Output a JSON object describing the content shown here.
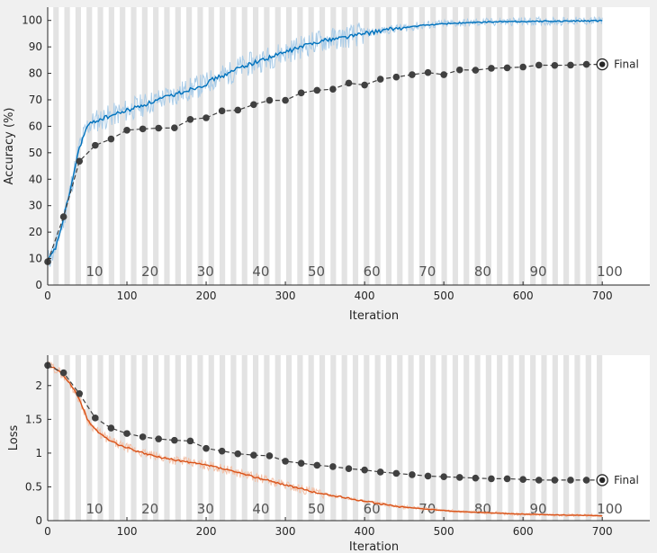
{
  "chart_data": [
    {
      "type": "line",
      "panel": "accuracy",
      "ylabel": "Accuracy (%)",
      "xlabel": "Iteration",
      "xlim": [
        0,
        760
      ],
      "ylim": [
        0,
        105
      ],
      "xticks": [
        0,
        100,
        200,
        300,
        400,
        500,
        600,
        700
      ],
      "yticks": [
        0,
        10,
        20,
        30,
        40,
        50,
        60,
        70,
        80,
        90,
        100
      ],
      "epoch_labels": [
        "10",
        "20",
        "30",
        "40",
        "50",
        "60",
        "70",
        "80",
        "90",
        "100"
      ],
      "epoch_label_iterations": [
        70,
        140,
        210,
        280,
        350,
        420,
        490,
        560,
        630,
        700
      ],
      "epoch_band_iterations": 7,
      "final_label": "Final",
      "colors": {
        "training": "#0072bd",
        "training_raw": "#a9cce8",
        "validation": "#404040"
      },
      "series": [
        {
          "role": "training-smoothed",
          "x": [
            0,
            10,
            20,
            30,
            40,
            50,
            60,
            70,
            80,
            90,
            100,
            110,
            120,
            130,
            140,
            150,
            160,
            170,
            180,
            190,
            200,
            210,
            220,
            230,
            240,
            250,
            260,
            270,
            280,
            290,
            300,
            310,
            320,
            330,
            340,
            350,
            360,
            370,
            380,
            390,
            400,
            410,
            420,
            430,
            440,
            450,
            460,
            470,
            480,
            490,
            500,
            510,
            520,
            530,
            540,
            550,
            560,
            570,
            580,
            590,
            600,
            610,
            620,
            630,
            640,
            650,
            660,
            670,
            680,
            690,
            700
          ],
          "values": [
            9,
            14,
            25,
            38,
            52,
            60,
            62,
            63,
            64,
            65,
            66,
            67,
            68,
            69,
            70,
            71,
            72,
            73,
            74,
            75,
            76,
            78,
            79,
            80,
            82,
            83,
            84,
            85,
            86,
            87,
            88,
            89,
            90,
            91,
            92,
            92.5,
            93,
            93.5,
            94,
            94.5,
            95,
            95.5,
            96,
            96.5,
            97,
            97.3,
            97.6,
            98,
            98.3,
            98.5,
            98.7,
            98.9,
            99,
            99.1,
            99.2,
            99.3,
            99.4,
            99.5,
            99.5,
            99.6,
            99.6,
            99.6,
            99.7,
            99.7,
            99.7,
            99.7,
            99.8,
            99.8,
            99.8,
            99.8,
            99.8
          ]
        },
        {
          "role": "validation",
          "x": [
            0,
            20,
            40,
            60,
            80,
            100,
            120,
            140,
            160,
            180,
            200,
            220,
            240,
            260,
            280,
            300,
            320,
            340,
            360,
            380,
            400,
            420,
            440,
            460,
            480,
            500,
            520,
            540,
            560,
            580,
            600,
            620,
            640,
            660,
            680,
            700
          ],
          "values": [
            8.8,
            25.8,
            46.8,
            52.8,
            55.2,
            58.5,
            59,
            59.3,
            59.4,
            62.6,
            63.2,
            65.8,
            66.1,
            68.2,
            69.8,
            69.8,
            72.6,
            73.6,
            74,
            76.3,
            75.6,
            77.8,
            78.6,
            79.5,
            80.3,
            79.5,
            81.3,
            81.2,
            81.9,
            82.1,
            82.4,
            83.1,
            83,
            83.1,
            83.4,
            83.4
          ]
        }
      ]
    },
    {
      "type": "line",
      "panel": "loss",
      "ylabel": "Loss",
      "xlabel": "Iteration",
      "xlim": [
        0,
        760
      ],
      "ylim": [
        0,
        2.45
      ],
      "xticks": [
        0,
        100,
        200,
        300,
        400,
        500,
        600,
        700
      ],
      "yticks": [
        0,
        0.5,
        1,
        1.5,
        2
      ],
      "ytick_labels": [
        "0",
        "0.5",
        "1",
        "1.5",
        "2"
      ],
      "epoch_labels": [
        "10",
        "20",
        "30",
        "40",
        "50",
        "60",
        "70",
        "80",
        "90",
        "100"
      ],
      "epoch_label_iterations": [
        70,
        140,
        210,
        280,
        350,
        420,
        490,
        560,
        630,
        700
      ],
      "epoch_band_iterations": 7,
      "final_label": "Final",
      "colors": {
        "training": "#d95319",
        "training_raw": "#f3c1a8",
        "validation": "#404040"
      },
      "series": [
        {
          "role": "training-smoothed",
          "x": [
            0,
            10,
            20,
            30,
            40,
            50,
            60,
            70,
            80,
            90,
            100,
            110,
            120,
            130,
            140,
            150,
            160,
            170,
            180,
            190,
            200,
            210,
            220,
            230,
            240,
            250,
            260,
            270,
            280,
            290,
            300,
            310,
            320,
            330,
            340,
            350,
            360,
            370,
            380,
            390,
            400,
            410,
            420,
            430,
            440,
            450,
            460,
            470,
            480,
            490,
            500,
            510,
            520,
            530,
            540,
            550,
            560,
            570,
            580,
            590,
            600,
            610,
            620,
            630,
            640,
            650,
            660,
            670,
            680,
            690,
            700
          ],
          "values": [
            2.3,
            2.25,
            2.15,
            2.0,
            1.8,
            1.5,
            1.35,
            1.25,
            1.18,
            1.12,
            1.08,
            1.04,
            1.0,
            0.97,
            0.94,
            0.92,
            0.9,
            0.88,
            0.86,
            0.84,
            0.82,
            0.8,
            0.77,
            0.74,
            0.71,
            0.68,
            0.65,
            0.62,
            0.59,
            0.56,
            0.53,
            0.5,
            0.47,
            0.44,
            0.41,
            0.39,
            0.37,
            0.35,
            0.33,
            0.31,
            0.29,
            0.27,
            0.25,
            0.23,
            0.21,
            0.2,
            0.19,
            0.18,
            0.17,
            0.16,
            0.15,
            0.14,
            0.135,
            0.13,
            0.125,
            0.12,
            0.115,
            0.11,
            0.105,
            0.1,
            0.097,
            0.094,
            0.091,
            0.088,
            0.085,
            0.083,
            0.081,
            0.079,
            0.077,
            0.075,
            0.073
          ]
        },
        {
          "role": "validation",
          "x": [
            0,
            20,
            40,
            60,
            80,
            100,
            120,
            140,
            160,
            180,
            200,
            220,
            240,
            260,
            280,
            300,
            320,
            340,
            360,
            380,
            400,
            420,
            440,
            460,
            480,
            500,
            520,
            540,
            560,
            580,
            600,
            620,
            640,
            660,
            680,
            700
          ],
          "values": [
            2.3,
            2.19,
            1.88,
            1.52,
            1.37,
            1.29,
            1.24,
            1.21,
            1.19,
            1.18,
            1.07,
            1.03,
            0.99,
            0.97,
            0.96,
            0.88,
            0.85,
            0.82,
            0.8,
            0.77,
            0.75,
            0.72,
            0.7,
            0.68,
            0.66,
            0.65,
            0.64,
            0.63,
            0.62,
            0.62,
            0.61,
            0.6,
            0.6,
            0.6,
            0.6,
            0.6
          ]
        }
      ]
    }
  ]
}
